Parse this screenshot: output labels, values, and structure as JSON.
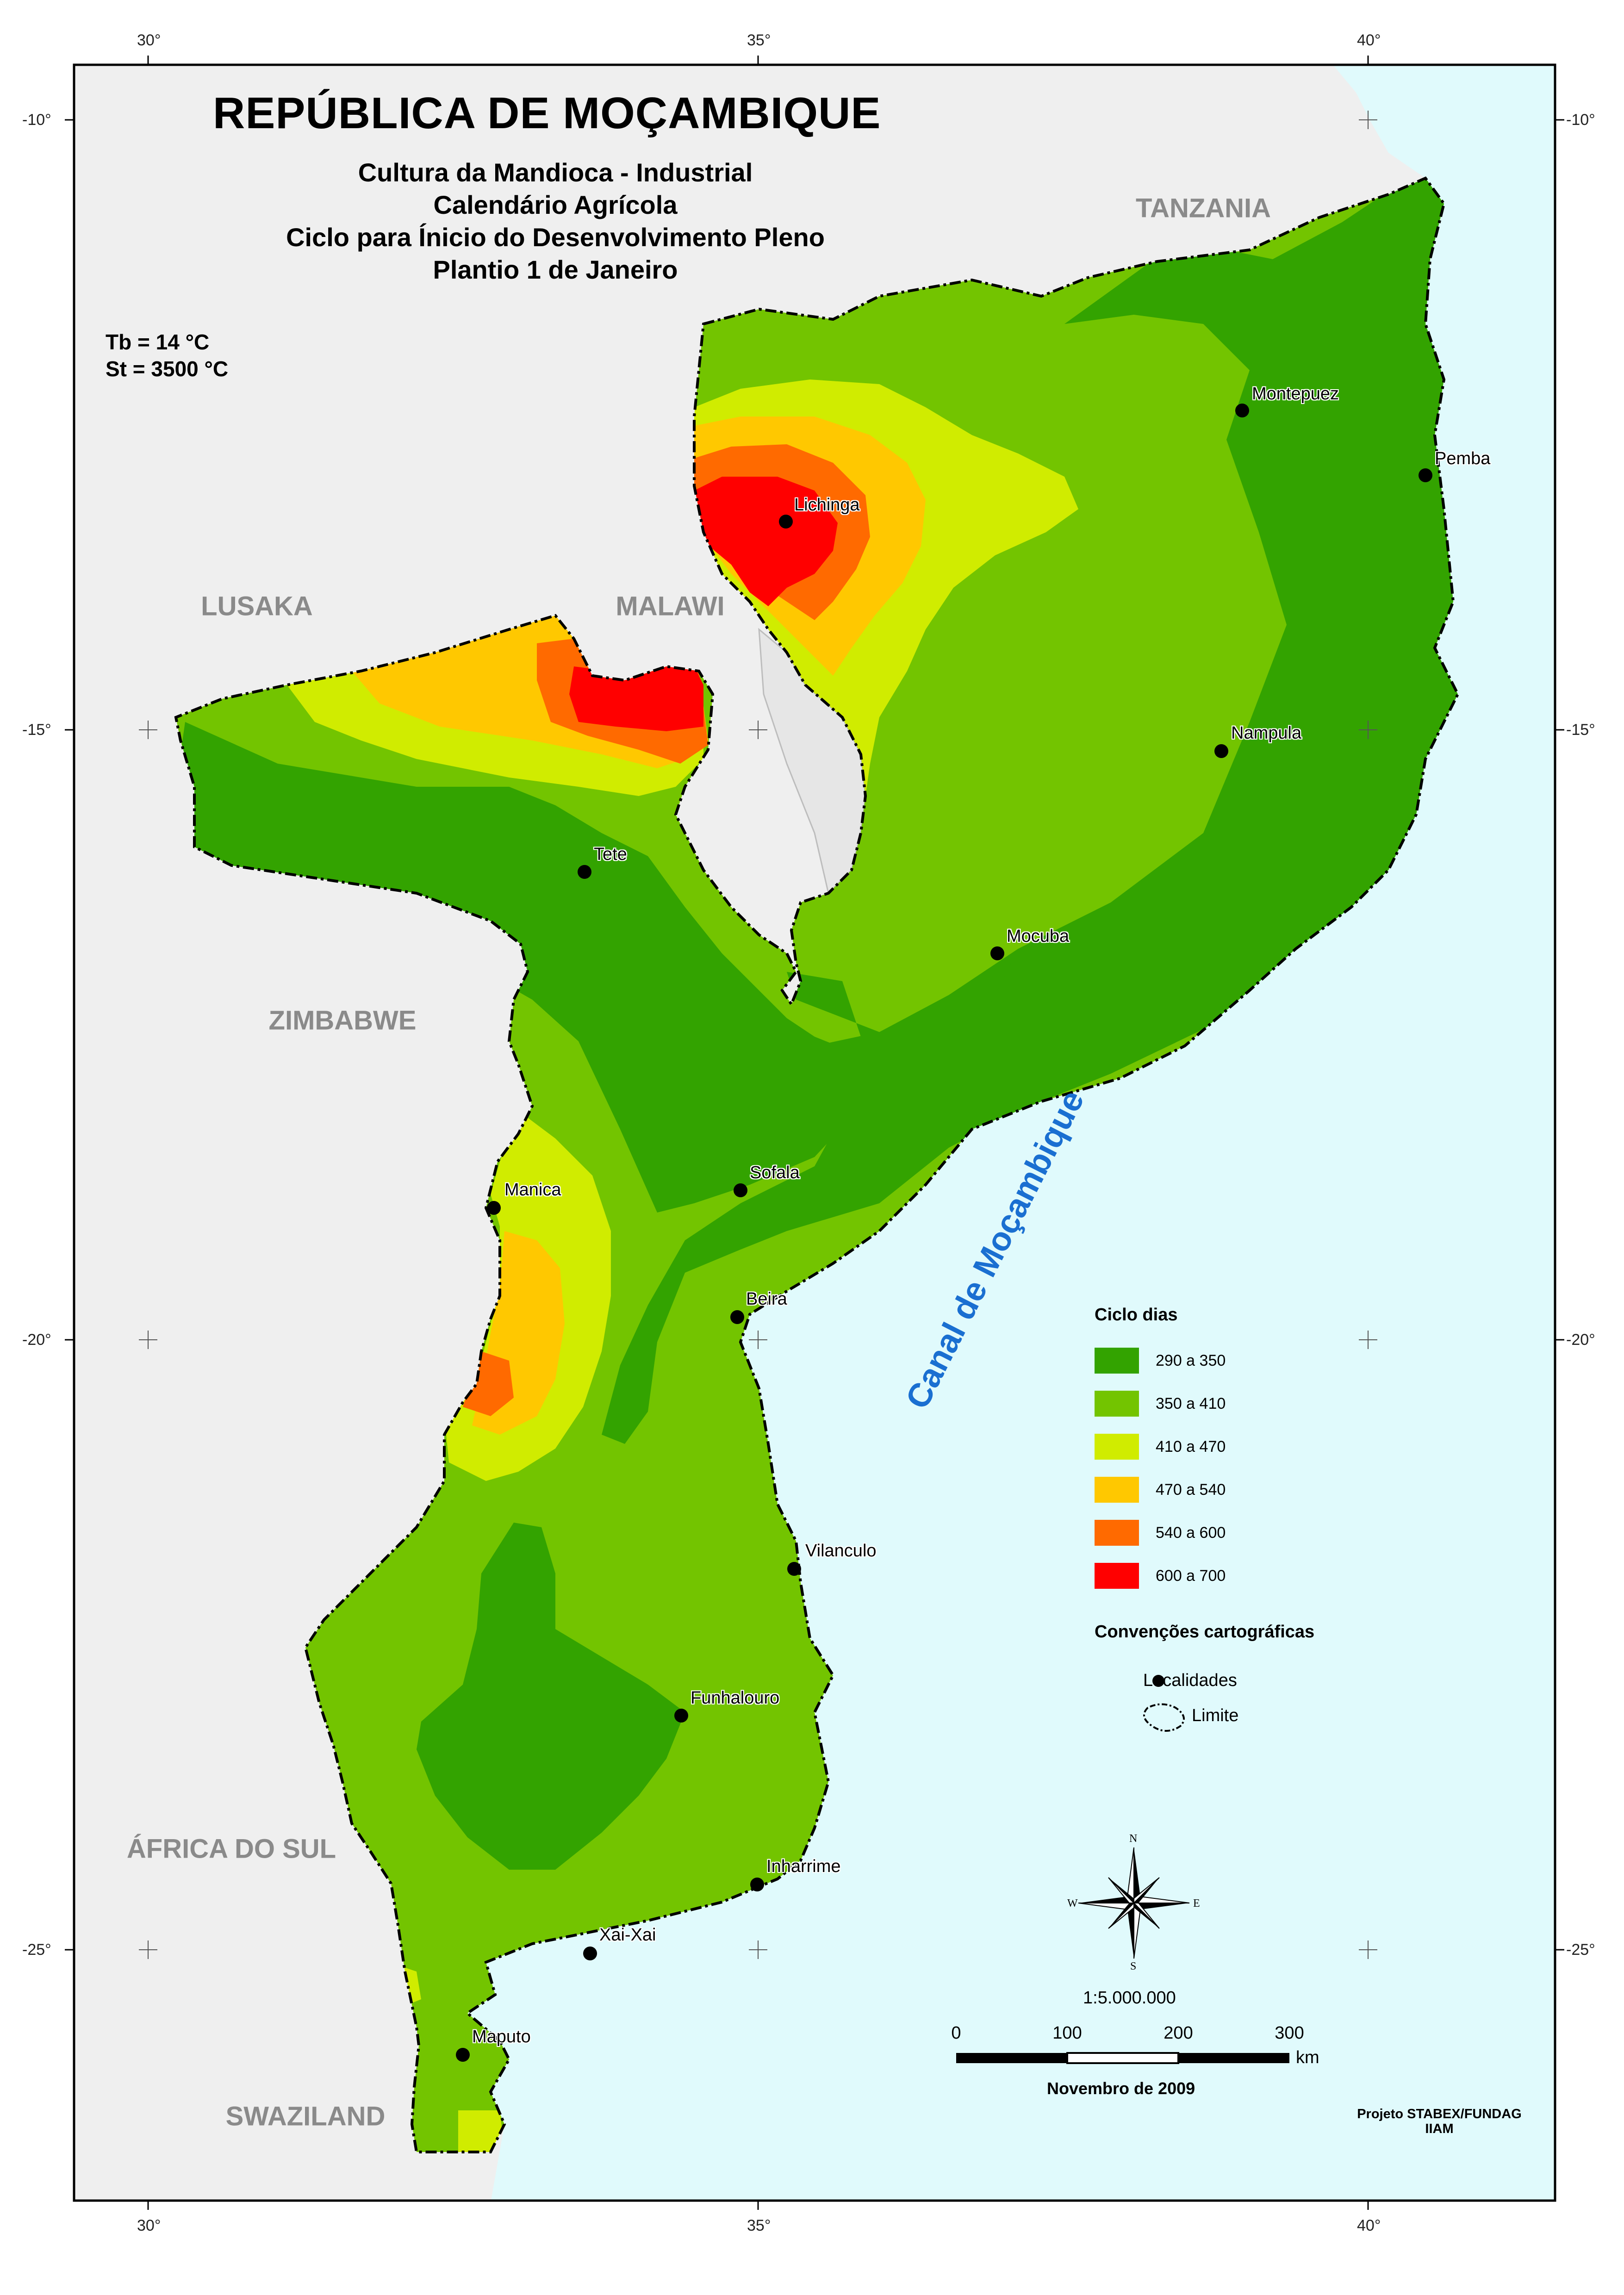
{
  "title": "REPÚBLICA DE MOÇAMBIQUE",
  "subtitle_lines": [
    "Cultura da Mandioca - Industrial",
    "Calendário Agrícola",
    "Ciclo para Ínicio do Desenvolvimento Pleno",
    "Plantio 1 de Janeiro"
  ],
  "params": {
    "tb": "Tb = 14 °C",
    "st": "St =  3500 °C"
  },
  "grid": {
    "lon_labels": [
      "30°",
      "35°",
      "40°"
    ],
    "lat_labels": [
      "-10°",
      "-15°",
      "-20°",
      "-25°"
    ]
  },
  "countries": {
    "tanzania": "TANZANIA",
    "lusaka": "LUSAKA",
    "malawi": "MALAWI",
    "zimbabwe": "ZIMBABWE",
    "south_africa": "ÁFRICA DO SUL",
    "swaziland": "SWAZILAND"
  },
  "sea_label": "Canal de Moçambique",
  "cities": [
    {
      "name": "Montepuez"
    },
    {
      "name": "Pemba"
    },
    {
      "name": "Lichinga"
    },
    {
      "name": "Nampula"
    },
    {
      "name": "Tete"
    },
    {
      "name": "Mocuba"
    },
    {
      "name": "Sofala"
    },
    {
      "name": "Manica"
    },
    {
      "name": "Beira"
    },
    {
      "name": "Vilanculo"
    },
    {
      "name": "Funhalouro"
    },
    {
      "name": "Inharrime"
    },
    {
      "name": "Xai-Xai"
    },
    {
      "name": "Maputo"
    }
  ],
  "legend": {
    "title": "Ciclo dias",
    "classes": [
      {
        "label": "290 a 350",
        "color": "#33a300"
      },
      {
        "label": "350 a 410",
        "color": "#73c400"
      },
      {
        "label": "410 a 470",
        "color": "#d0ec00"
      },
      {
        "label": "470 a 540",
        "color": "#ffc800"
      },
      {
        "label": "540 a 600",
        "color": "#ff6a00"
      },
      {
        "label": "600 a 700",
        "color": "#ff0000"
      }
    ]
  },
  "conventions": {
    "title": "Convenções cartográficas",
    "localidades": "Localidades",
    "limite": "Limite"
  },
  "compass": {
    "n": "N",
    "s": "S",
    "e": "E",
    "w": "W"
  },
  "scale": {
    "ratio": "1:5.000.000",
    "ticks": [
      "0",
      "100",
      "200",
      "300"
    ],
    "unit": "km"
  },
  "date": "Novembro de 2009",
  "credit": [
    "Projeto STABEX/FUNDAG",
    "IIAM"
  ],
  "colors": {
    "sea": "#e0fafc",
    "land_other": "#efefef",
    "frame": "#000000"
  }
}
